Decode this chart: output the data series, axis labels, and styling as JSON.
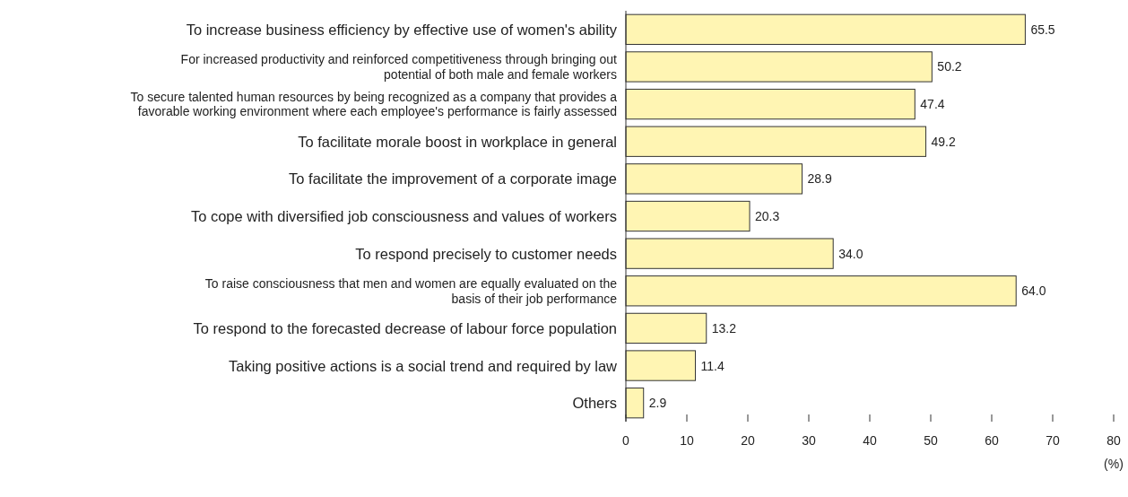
{
  "chart_data": {
    "type": "bar",
    "orientation": "horizontal",
    "xlabel": "(%)",
    "categories": [
      "To increase business efficiency by effective use of women's ability",
      "For increased productivity and reinforced competitiveness through bringing out\npotential of both male and female workers",
      "To secure talented human resources by being recognized as a company that provides a\nfavorable working environment where each employee's performance is fairly assessed",
      "To facilitate morale boost in workplace in general",
      "To facilitate the improvement of a corporate image",
      "To cope with diversified job consciousness and values of workers",
      "To respond precisely to customer needs",
      "To raise consciousness that men and women are equally evaluated on the\nbasis of their job performance",
      "To respond to the forecasted decrease of labour force population",
      "Taking positive actions is a social trend and required by law",
      "Others"
    ],
    "values": [
      65.5,
      50.2,
      47.4,
      49.2,
      28.9,
      20.3,
      34.0,
      64.0,
      13.2,
      11.4,
      2.9
    ],
    "value_labels": [
      "65.5",
      "50.2",
      "47.4",
      "49.2",
      "28.9",
      "20.3",
      "34.0",
      "64.0",
      "13.2",
      "11.4",
      "2.9"
    ],
    "color": "#fff5b3",
    "xlim": [
      0,
      80
    ],
    "xticks": [
      0,
      10,
      20,
      30,
      40,
      50,
      60,
      70,
      80
    ],
    "grid": false
  }
}
